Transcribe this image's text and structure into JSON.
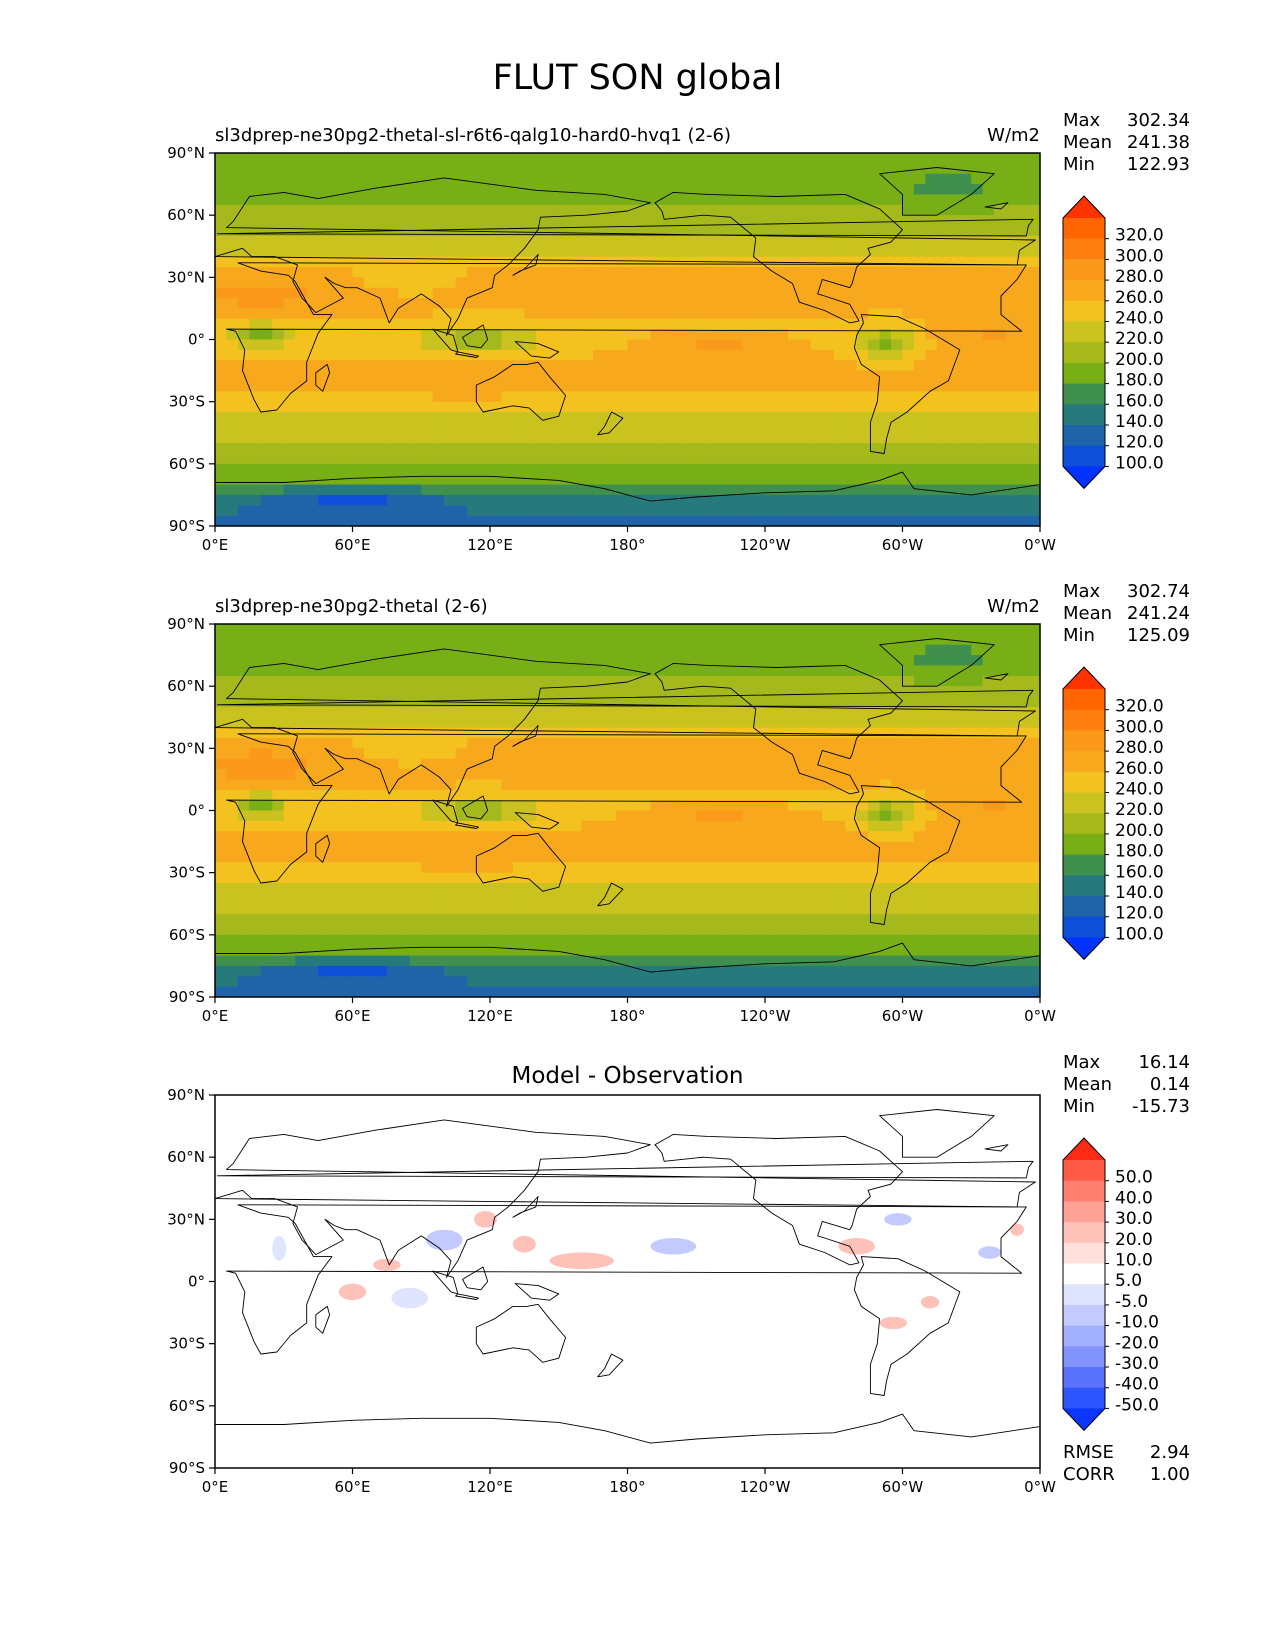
{
  "figure": {
    "title": "FLUT SON global"
  },
  "axis_labels": {
    "lon_ticks": [
      "0°E",
      "60°E",
      "120°E",
      "180°",
      "120°W",
      "60°W",
      "0°W"
    ],
    "lat_ticks": [
      "90°N",
      "60°N",
      "30°N",
      "0°",
      "30°S",
      "60°S",
      "90°S"
    ]
  },
  "stat_labels": {
    "max": "Max",
    "mean": "Mean",
    "min": "Min",
    "rmse": "RMSE",
    "corr": "CORR"
  },
  "chart_data": [
    {
      "type": "heatmap",
      "title": "sl3dprep-ne30pg2-thetal-sl-r6t6-qalg10-hard0-hvq1 (2-6)",
      "units": "W/m2",
      "stats": {
        "max": "302.34",
        "mean": "241.38",
        "min": "122.93"
      },
      "xlim": [
        0,
        360
      ],
      "ylim": [
        -90,
        90
      ],
      "colorbar": {
        "labels": [
          "320.0",
          "300.0",
          "280.0",
          "260.0",
          "240.0",
          "220.0",
          "200.0",
          "180.0",
          "160.0",
          "140.0",
          "120.0",
          "100.0"
        ],
        "colors": [
          "#ff3300",
          "#ff6600",
          "#ff7f10",
          "#fb9a1a",
          "#f7a81c",
          "#f4c21f",
          "#c9c21f",
          "#a6b91c",
          "#78af16",
          "#3f8f4f",
          "#267a7c",
          "#1f64a8",
          "#0d4fd6",
          "#0033ff"
        ]
      }
    },
    {
      "type": "heatmap",
      "title": "sl3dprep-ne30pg2-thetal (2-6)",
      "units": "W/m2",
      "stats": {
        "max": "302.74",
        "mean": "241.24",
        "min": "125.09"
      },
      "xlim": [
        0,
        360
      ],
      "ylim": [
        -90,
        90
      ],
      "colorbar": {
        "labels": [
          "320.0",
          "300.0",
          "280.0",
          "260.0",
          "240.0",
          "220.0",
          "200.0",
          "180.0",
          "160.0",
          "140.0",
          "120.0",
          "100.0"
        ],
        "colors": [
          "#ff3300",
          "#ff6600",
          "#ff7f10",
          "#fb9a1a",
          "#f7a81c",
          "#f4c21f",
          "#c9c21f",
          "#a6b91c",
          "#78af16",
          "#3f8f4f",
          "#267a7c",
          "#1f64a8",
          "#0d4fd6",
          "#0033ff"
        ]
      }
    },
    {
      "type": "heatmap",
      "title": "Model - Observation",
      "units": "",
      "stats": {
        "max": "16.14",
        "mean": "0.14",
        "min": "-15.73"
      },
      "metrics": {
        "rmse": "2.94",
        "corr": "1.00"
      },
      "xlim": [
        0,
        360
      ],
      "ylim": [
        -90,
        90
      ],
      "colorbar": {
        "labels": [
          "50.0",
          "40.0",
          "30.0",
          "20.0",
          "10.0",
          "5.0",
          "-5.0",
          "-10.0",
          "-20.0",
          "-30.0",
          "-40.0",
          "-50.0"
        ],
        "colors": [
          "#ff2a14",
          "#ff5a45",
          "#ff8070",
          "#ffa194",
          "#ffc2b8",
          "#ffe0da",
          "#ffffff",
          "#dfe4ff",
          "#c2caff",
          "#a3b0ff",
          "#8494ff",
          "#5a73ff",
          "#2e55ff",
          "#0a36ff"
        ]
      }
    }
  ]
}
